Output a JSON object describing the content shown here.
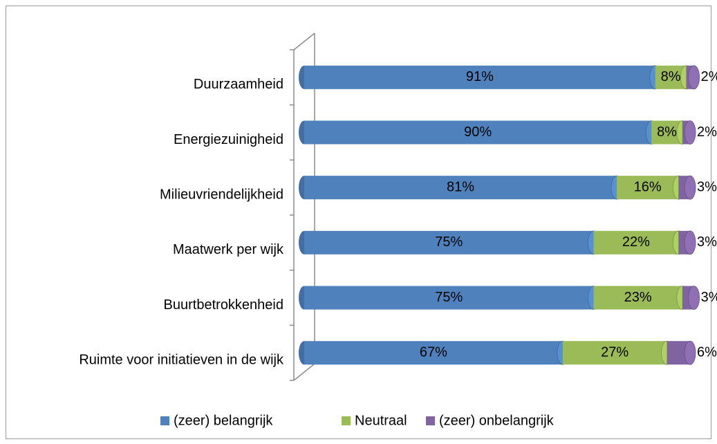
{
  "chart_data": {
    "type": "stacked-bar-horizontal",
    "categories": [
      "Duurzaamheid",
      "Energiezuinigheid",
      "Milieuvriendelijkheid",
      "Maatwerk per wijk",
      "Buurtbetrokkenheid",
      "Ruimte voor initiatieven in de wijk"
    ],
    "series": [
      {
        "name": "(zeer) belangrijk",
        "color": "#4f81bd",
        "values": [
          91,
          90,
          81,
          75,
          75,
          67
        ],
        "value_labels": [
          "91%",
          "90%",
          "81%",
          "75%",
          "75%",
          "67%"
        ]
      },
      {
        "name": "Neutraal",
        "color": "#9bbb59",
        "values": [
          8,
          8,
          16,
          22,
          23,
          27
        ],
        "value_labels": [
          "8%",
          "8%",
          "16%",
          "22%",
          "23%",
          "27%"
        ]
      },
      {
        "name": "(zeer) onbelangrijk",
        "color": "#8064a2",
        "values": [
          2,
          2,
          3,
          3,
          3,
          6
        ],
        "value_labels": [
          "2%",
          "2%",
          "3%",
          "3%",
          "3%",
          "6%"
        ]
      }
    ],
    "xlim": [
      0,
      100
    ],
    "legend": "bottom"
  }
}
